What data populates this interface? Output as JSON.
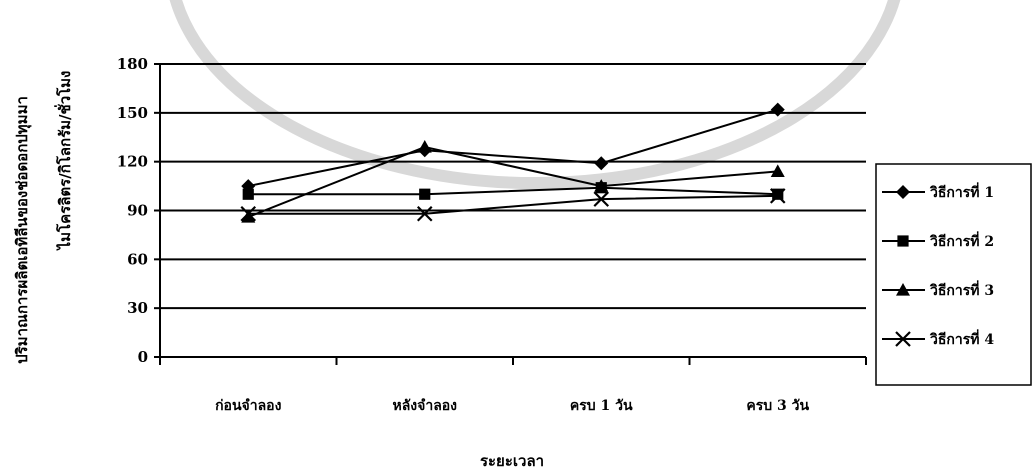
{
  "chart_data": {
    "type": "line",
    "ylabel_lines": [
      "ปริมาณการผลิตเอทิลีนของช่อดอกปทุมมา",
      "ไมโครลิตร/กิโลกรัม/ชั่วโมง"
    ],
    "xlabel": "ระยะเวลา",
    "categories": [
      "ก่อนจำลอง",
      "หลังจำลอง",
      "ครบ 1 วัน",
      "ครบ 3 วัน"
    ],
    "ylim": [
      0,
      180
    ],
    "yticks": [
      0,
      30,
      60,
      90,
      120,
      150,
      180
    ],
    "grid": true,
    "legend_position": "right",
    "series": [
      {
        "name": "วิธีการที่ 1",
        "marker": "diamond",
        "values": [
          105,
          127,
          119,
          152
        ]
      },
      {
        "name": "วิธีการที่ 2",
        "marker": "square",
        "values": [
          100,
          100,
          104,
          100
        ]
      },
      {
        "name": "วิธีการที่ 3",
        "marker": "triangle",
        "values": [
          86,
          129,
          105,
          114
        ]
      },
      {
        "name": "วิธีการที่ 4",
        "marker": "x",
        "values": [
          88,
          88,
          97,
          99
        ]
      }
    ],
    "colors": {
      "line": "#000000",
      "grid": "#000000",
      "background": "#ffffff"
    }
  }
}
